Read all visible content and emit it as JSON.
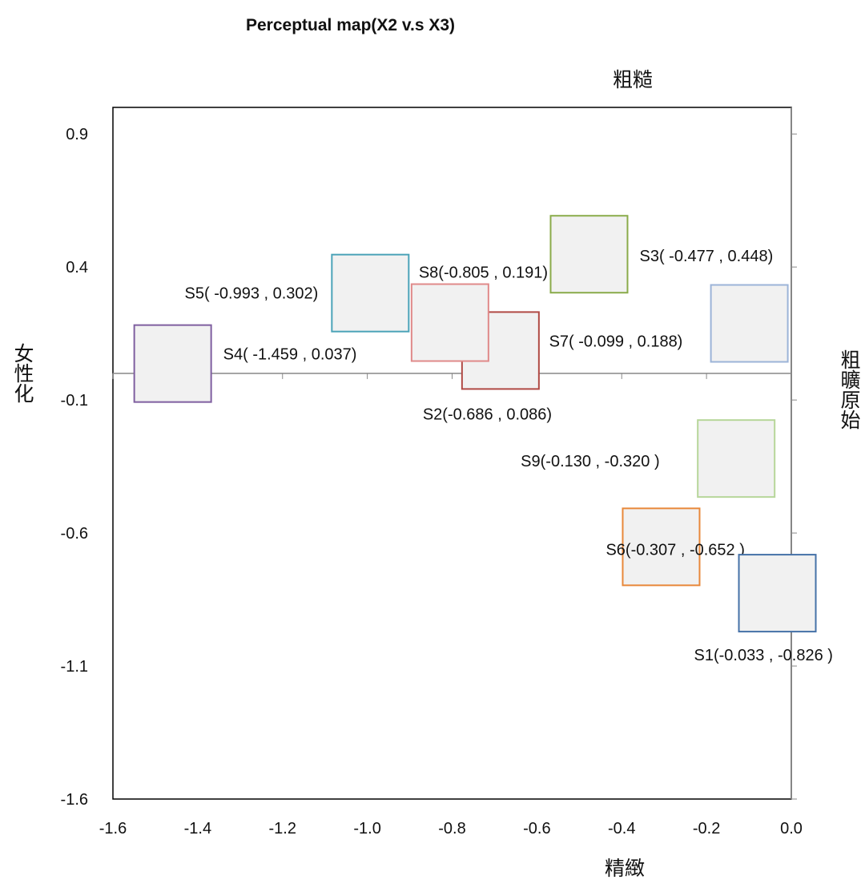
{
  "chart_data": {
    "type": "scatter",
    "title": "Perceptual  map(X2 v.s X3)",
    "top_label": "粗糙",
    "bottom_label": "精緻",
    "left_label": "女性化",
    "right_label": "粗曠原始",
    "x": [
      -0.033,
      -0.686,
      -0.477,
      -1.459,
      -0.993,
      -0.307,
      -0.099,
      -0.805,
      -0.13
    ],
    "values": [
      -0.826,
      0.086,
      0.448,
      0.037,
      0.302,
      -0.652,
      0.188,
      0.191,
      -0.32
    ],
    "value_labels": [
      "S1(-0.033 , -0.826 )",
      "S2(-0.686 , 0.086)",
      "S3( -0.477 , 0.448)",
      "S4( -1.459 , 0.037)",
      "S5( -0.993 , 0.302)",
      "S6(-0.307 , -0.652 )",
      "S7( -0.099 , 0.188)",
      "S8(-0.805 , 0.191)",
      "S9(-0.130 , -0.320 )"
    ],
    "colors": [
      "#4672a8",
      "#b04a45",
      "#8aab4a",
      "#7f5fa0",
      "#4ba3b8",
      "#e8883a",
      "#9cb4d8",
      "#e08a8a",
      "#b7d69a"
    ],
    "xlim": [
      -1.6,
      0
    ],
    "ylim": [
      -1.6,
      1.0
    ],
    "xticks": [
      -1.6,
      -1.4,
      -1.2,
      {
        "value": -1,
        "label": "-1.0"
      },
      -0.8,
      -0.6,
      -0.4,
      -0.2,
      {
        "value": 0,
        "label": "0.0"
      }
    ],
    "yticks": [
      0.9,
      0.4,
      -0.1,
      -0.6,
      -1.1,
      -1.6
    ]
  }
}
